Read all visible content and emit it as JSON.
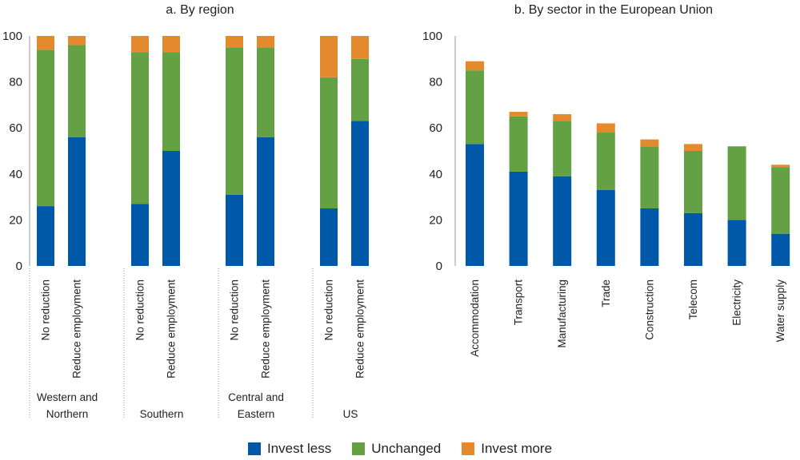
{
  "colors": {
    "invest_less": "#0058a8",
    "unchanged": "#64a044",
    "invest_more": "#e48a2c"
  },
  "legend": [
    {
      "key": "invest_less",
      "label": "Invest less"
    },
    {
      "key": "unchanged",
      "label": "Unchanged"
    },
    {
      "key": "invest_more",
      "label": "Invest more"
    }
  ],
  "chart_data": [
    {
      "type": "bar",
      "stacked": true,
      "title": "a. By region",
      "ylim": [
        0,
        100
      ],
      "yticks": [
        0,
        20,
        40,
        60,
        80,
        100
      ],
      "groups": [
        "Western and Northern",
        "Southern",
        "Central and Eastern",
        "US"
      ],
      "group_labels": [
        [
          "Western and",
          "Northern"
        ],
        [
          "Southern"
        ],
        [
          "Central and",
          "Eastern"
        ],
        [
          "US"
        ]
      ],
      "categories": [
        "No reduction",
        "Reduce employment"
      ],
      "series": [
        {
          "name": "Invest less",
          "key": "invest_less",
          "values": [
            [
              26,
              56
            ],
            [
              27,
              50
            ],
            [
              31,
              56
            ],
            [
              25,
              63
            ]
          ]
        },
        {
          "name": "Unchanged",
          "key": "unchanged",
          "values": [
            [
              68,
              40
            ],
            [
              66,
              43
            ],
            [
              64,
              39
            ],
            [
              57,
              27
            ]
          ]
        },
        {
          "name": "Invest more",
          "key": "invest_more",
          "values": [
            [
              6,
              4
            ],
            [
              7,
              7
            ],
            [
              5,
              5
            ],
            [
              18,
              10
            ]
          ]
        }
      ]
    },
    {
      "type": "bar",
      "stacked": true,
      "title": "b. By sector in the European Union",
      "ylim": [
        0,
        100
      ],
      "yticks": [
        0,
        20,
        40,
        60,
        80,
        100
      ],
      "categories": [
        "Accommodation",
        "Transport",
        "Manufacturing",
        "Trade",
        "Construction",
        "Telecom",
        "Electricity",
        "Water supply"
      ],
      "series": [
        {
          "name": "Invest less",
          "key": "invest_less",
          "values": [
            53,
            41,
            39,
            33,
            25,
            23,
            20,
            14
          ]
        },
        {
          "name": "Unchanged",
          "key": "unchanged",
          "values": [
            32,
            24,
            24,
            25,
            27,
            27,
            32,
            29
          ]
        },
        {
          "name": "Invest more",
          "key": "invest_more",
          "values": [
            4,
            2,
            3,
            4,
            3,
            3,
            0,
            1
          ]
        }
      ]
    }
  ]
}
